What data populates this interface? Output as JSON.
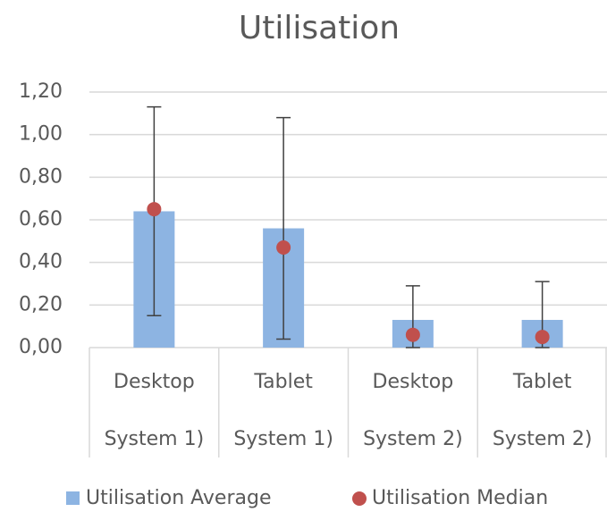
{
  "chart_data": {
    "type": "bar",
    "title": "Utilisation",
    "categories": [
      [
        "Desktop",
        "System 1)"
      ],
      [
        "Tablet",
        "System 1)"
      ],
      [
        "Desktop",
        "System 2)"
      ],
      [
        "Tablet",
        "System 2)"
      ]
    ],
    "series": [
      {
        "name": "Utilisation Average",
        "color": "#8db4e2",
        "values": [
          0.64,
          0.56,
          0.13,
          0.13
        ],
        "errors": [
          0.49,
          0.52,
          0.16,
          0.18
        ]
      },
      {
        "name": "Utilisation Median",
        "color": "#c0504d",
        "type": "scatter",
        "values": [
          0.65,
          0.47,
          0.06,
          0.05
        ]
      }
    ],
    "ylim": [
      0,
      1.2
    ],
    "yticks": [
      {
        "value": 0,
        "label": "0,00"
      },
      {
        "value": 0.2,
        "label": "0,20"
      },
      {
        "value": 0.4,
        "label": "0,40"
      },
      {
        "value": 0.6,
        "label": "0,60"
      },
      {
        "value": 0.8,
        "label": "0,80"
      },
      {
        "value": 1.0,
        "label": "1,00"
      },
      {
        "value": 1.2,
        "label": "1,20"
      }
    ],
    "grid": true,
    "legend": "bottom",
    "error_color": "#404040"
  }
}
